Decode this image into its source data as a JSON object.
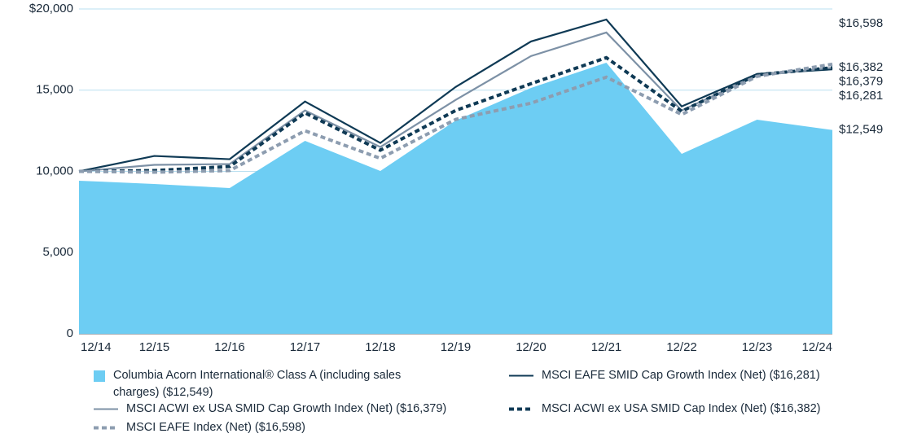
{
  "chart_data": {
    "type": "line",
    "categories": [
      "12/14",
      "12/15",
      "12/16",
      "12/17",
      "12/18",
      "12/19",
      "12/20",
      "12/21",
      "12/22",
      "12/23",
      "12/24"
    ],
    "ylim": [
      0,
      20000
    ],
    "yticks": [
      0,
      {
        "value": 5000,
        "label": "5,000"
      },
      {
        "value": 10000,
        "label": "10,000"
      },
      {
        "value": 15000,
        "label": "15,000"
      },
      {
        "value": 20000,
        "label": "$20,000"
      }
    ],
    "grid": true,
    "series": [
      {
        "name": "Columbia Acorn International® Class A (including sales charges) ($12,549)",
        "color": "#6dcdf3",
        "style": "area",
        "values": [
          9425,
          9225,
          8975,
          11880,
          10025,
          13130,
          15140,
          16690,
          11080,
          13180,
          12549
        ],
        "value_labels": [
          null,
          null,
          null,
          null,
          null,
          null,
          null,
          null,
          null,
          null,
          "$12,549"
        ]
      },
      {
        "name": "MSCI EAFE SMID Cap Growth Index (Net) ($16,281)",
        "color": "#0f3a55",
        "style": "solid",
        "values": [
          10000,
          10950,
          10750,
          14300,
          11750,
          15200,
          18000,
          19350,
          14000,
          16000,
          16281
        ],
        "value_labels": [
          null,
          null,
          null,
          null,
          null,
          null,
          null,
          null,
          null,
          null,
          "$16,281"
        ]
      },
      {
        "name": "MSCI ACWI ex USA SMID Cap Growth Index (Net) ($16,379)",
        "color": "#7d91a6",
        "style": "solid",
        "values": [
          10000,
          10400,
          10450,
          13750,
          11500,
          14400,
          17100,
          18550,
          13750,
          15900,
          16379
        ],
        "value_labels": [
          null,
          null,
          null,
          null,
          null,
          null,
          null,
          null,
          null,
          null,
          "$16,379"
        ]
      },
      {
        "name": "MSCI ACWI ex USA SMID Cap Index (Net) ($16,382)",
        "color": "#0f3a55",
        "style": "dashed",
        "values": [
          10000,
          10050,
          10300,
          13600,
          11300,
          13750,
          15400,
          17000,
          13700,
          15950,
          16382
        ],
        "value_labels": [
          null,
          null,
          null,
          null,
          null,
          null,
          null,
          null,
          null,
          null,
          "$16,382"
        ]
      },
      {
        "name": "MSCI EAFE Index (Net) ($16,598)",
        "color": "#8d9db0",
        "style": "dashed",
        "values": [
          10000,
          9950,
          10050,
          12500,
          10800,
          13200,
          14200,
          15800,
          13500,
          15850,
          16598
        ],
        "value_labels": [
          null,
          null,
          null,
          null,
          null,
          null,
          null,
          null,
          null,
          null,
          "$16,598"
        ]
      }
    ]
  }
}
